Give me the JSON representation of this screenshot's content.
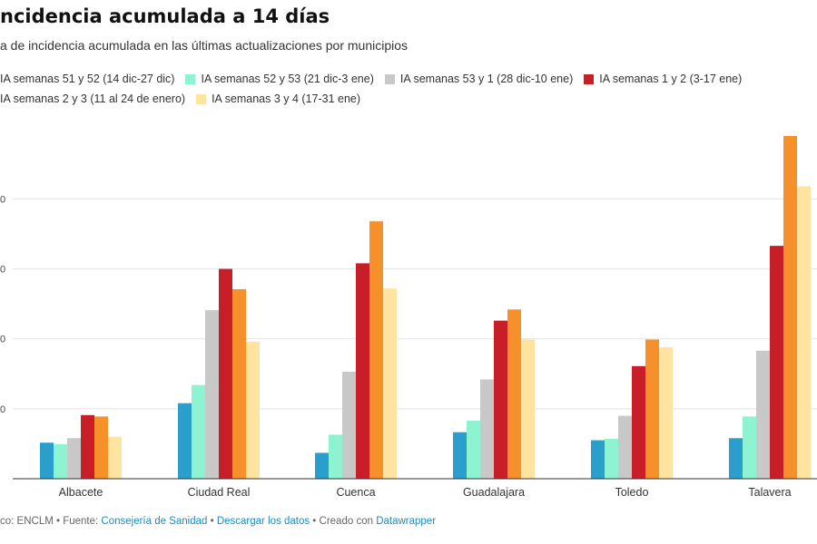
{
  "title": "ncidencia acumulada a 14 días",
  "subtitle": "a de incidencia acumulada en las últimas actualizaciones por municipios",
  "legend": [
    {
      "label": "IA semanas 51 y 52 (14 dic-27 dic)",
      "color": "#2a9fcc",
      "swatch": false
    },
    {
      "label": "IA semanas 52 y 53 (21 dic-3 ene)",
      "color": "#8ef3d0",
      "swatch": true
    },
    {
      "label": "IA semanas 53 y 1 (28 dic-10 ene)",
      "color": "#c8c8c8",
      "swatch": true
    },
    {
      "label": "IA semanas 1 y 2 (3-17 ene)",
      "color": "#c81e27",
      "swatch": true
    },
    {
      "label": "IA semanas 2 y 3 (11 al 24 de enero)",
      "color": "#f5902a",
      "swatch": false
    },
    {
      "label": "IA semanas 3 y 4 (17-31 ene)",
      "color": "#ffe3a0",
      "swatch": true
    }
  ],
  "chart_data": {
    "type": "bar",
    "title": "ncidencia acumulada a 14 días",
    "subtitle": "a de incidencia acumulada en las últimas actualizaciones por municipios",
    "categories": [
      "Albacete",
      "Ciudad Real",
      "Cuenca",
      "Guadalajara",
      "Toledo",
      "Talavera"
    ],
    "series": [
      {
        "name": "IA semanas 51 y 52 (14 dic-27 dic)",
        "color": "#2a9fcc",
        "values": [
          515,
          1080,
          370,
          665,
          550,
          580
        ]
      },
      {
        "name": "IA semanas 52 y 53 (21 dic-3 ene)",
        "color": "#8ef3d0",
        "values": [
          495,
          1340,
          630,
          830,
          570,
          890
        ]
      },
      {
        "name": "IA semanas 53 y 1 (28 dic-10 ene)",
        "color": "#c8c8c8",
        "values": [
          580,
          2410,
          1530,
          1420,
          900,
          1830
        ]
      },
      {
        "name": "IA semanas 1 y 2 (3-17 ene)",
        "color": "#c81e27",
        "values": [
          910,
          3000,
          3080,
          2260,
          1610,
          3330
        ]
      },
      {
        "name": "IA semanas 2 y 3 (11 al 24 de enero)",
        "color": "#f5902a",
        "values": [
          890,
          2710,
          3680,
          2420,
          1990,
          4900
        ]
      },
      {
        "name": "IA semanas 3 y 4 (17-31 ene)",
        "color": "#ffe3a0",
        "values": [
          600,
          1960,
          2720,
          1990,
          1880,
          4180
        ]
      }
    ],
    "ylim": [
      0,
      4900
    ],
    "gridlines": [
      1000,
      2000,
      3000,
      4000
    ],
    "ytick_labels": [
      "0",
      "0",
      "0",
      "0"
    ],
    "grid": true,
    "legend_position": "top"
  },
  "footer": {
    "prefix": "co: ENCLM • Fuente: ",
    "source_link": "Consejería de Sanidad",
    "sep1": " • ",
    "download_link": "Descargar los datos",
    "sep2": " • Creado con ",
    "tool_link": "Datawrapper"
  }
}
